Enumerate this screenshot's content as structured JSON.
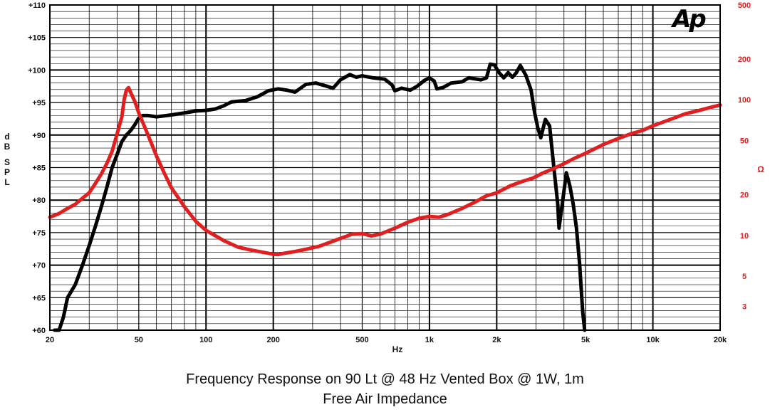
{
  "chart_data": {
    "type": "line",
    "logo": "Ap",
    "title_line1": "Frequency Response on 90 Lt @ 48 Hz Vented Box @ 1W, 1m",
    "title_line2": "Free Air Impedance",
    "xlabel": "Hz",
    "ylabel_left": "dB SPL",
    "ylabel_right": "Ω",
    "x_scale": "log",
    "xlim": [
      20,
      20000
    ],
    "ylim_left": [
      60,
      110
    ],
    "ylim_right": [
      2,
      500
    ],
    "y_right_scale": "log",
    "grid": true,
    "x_ticks": [
      {
        "value": 20,
        "label": "20"
      },
      {
        "value": 50,
        "label": "50"
      },
      {
        "value": 100,
        "label": "100"
      },
      {
        "value": 200,
        "label": "200"
      },
      {
        "value": 500,
        "label": "500"
      },
      {
        "value": 1000,
        "label": "1k"
      },
      {
        "value": 2000,
        "label": "2k"
      },
      {
        "value": 5000,
        "label": "5k"
      },
      {
        "value": 10000,
        "label": "10k"
      },
      {
        "value": 20000,
        "label": "20k"
      }
    ],
    "y_left_ticks": [
      {
        "value": 60,
        "label": "+60"
      },
      {
        "value": 65,
        "label": "+65"
      },
      {
        "value": 70,
        "label": "+70"
      },
      {
        "value": 75,
        "label": "+75"
      },
      {
        "value": 80,
        "label": "+80"
      },
      {
        "value": 85,
        "label": "+85"
      },
      {
        "value": 90,
        "label": "+90"
      },
      {
        "value": 95,
        "label": "+95"
      },
      {
        "value": 100,
        "label": "+100"
      },
      {
        "value": 105,
        "label": "+105"
      },
      {
        "value": 110,
        "label": "+110"
      }
    ],
    "y_right_ticks": [
      {
        "value": 3,
        "label": "3"
      },
      {
        "value": 5,
        "label": "5"
      },
      {
        "value": 10,
        "label": "10"
      },
      {
        "value": 20,
        "label": "20"
      },
      {
        "value": 50,
        "label": "50"
      },
      {
        "value": 100,
        "label": "100"
      },
      {
        "value": 200,
        "label": "200"
      },
      {
        "value": 500,
        "label": "500"
      }
    ],
    "series": [
      {
        "axis": "left",
        "color": "#000000",
        "points": [
          [
            21,
            59
          ],
          [
            22,
            60
          ],
          [
            23,
            62
          ],
          [
            24,
            65
          ],
          [
            26,
            67
          ],
          [
            28,
            70
          ],
          [
            30,
            73
          ],
          [
            32,
            76
          ],
          [
            34,
            79
          ],
          [
            36,
            82
          ],
          [
            38,
            85
          ],
          [
            40,
            87
          ],
          [
            42,
            89
          ],
          [
            44,
            90
          ],
          [
            46,
            90.7
          ],
          [
            48,
            91.6
          ],
          [
            50,
            92.6
          ],
          [
            52,
            93
          ],
          [
            55,
            93
          ],
          [
            60,
            92.8
          ],
          [
            70,
            93.1
          ],
          [
            80,
            93.4
          ],
          [
            90,
            93.7
          ],
          [
            100,
            93.8
          ],
          [
            110,
            94
          ],
          [
            120,
            94.5
          ],
          [
            130,
            95.1
          ],
          [
            150,
            95.3
          ],
          [
            170,
            95.9
          ],
          [
            190,
            96.8
          ],
          [
            210,
            97.1
          ],
          [
            230,
            96.9
          ],
          [
            250,
            96.6
          ],
          [
            280,
            97.8
          ],
          [
            310,
            98
          ],
          [
            340,
            97.6
          ],
          [
            370,
            97.2
          ],
          [
            400,
            98.5
          ],
          [
            440,
            99.3
          ],
          [
            470,
            98.9
          ],
          [
            500,
            99.1
          ],
          [
            560,
            98.8
          ],
          [
            630,
            98.6
          ],
          [
            680,
            97.7
          ],
          [
            700,
            96.8
          ],
          [
            750,
            97.2
          ],
          [
            820,
            96.9
          ],
          [
            880,
            97.5
          ],
          [
            950,
            98.4
          ],
          [
            1000,
            98.8
          ],
          [
            1050,
            98.3
          ],
          [
            1080,
            97.1
          ],
          [
            1150,
            97.3
          ],
          [
            1250,
            98
          ],
          [
            1400,
            98.2
          ],
          [
            1500,
            98.8
          ],
          [
            1700,
            98.5
          ],
          [
            1800,
            98.8
          ],
          [
            1870,
            100.9
          ],
          [
            1950,
            100.8
          ],
          [
            2050,
            99.6
          ],
          [
            2150,
            98.8
          ],
          [
            2250,
            99.6
          ],
          [
            2350,
            98.9
          ],
          [
            2450,
            99.6
          ],
          [
            2550,
            100.7
          ],
          [
            2700,
            99.2
          ],
          [
            2850,
            96.9
          ],
          [
            2950,
            93.6
          ],
          [
            3050,
            91.2
          ],
          [
            3150,
            89.6
          ],
          [
            3300,
            92.4
          ],
          [
            3450,
            91.4
          ],
          [
            3600,
            85.2
          ],
          [
            3750,
            79.4
          ],
          [
            3800,
            75.7
          ],
          [
            3950,
            79.9
          ],
          [
            4100,
            84.2
          ],
          [
            4250,
            82.2
          ],
          [
            4400,
            79.4
          ],
          [
            4550,
            75.7
          ],
          [
            4700,
            70.2
          ],
          [
            4850,
            62.9
          ],
          [
            4950,
            60
          ]
        ]
      },
      {
        "axis": "right",
        "color": "#e02020",
        "points": [
          [
            20,
            13.6
          ],
          [
            22,
            14.5
          ],
          [
            24,
            15.8
          ],
          [
            26,
            17
          ],
          [
            28,
            18.8
          ],
          [
            30,
            20.6
          ],
          [
            32,
            24.2
          ],
          [
            34,
            28.4
          ],
          [
            36,
            34
          ],
          [
            38,
            41.7
          ],
          [
            40,
            56
          ],
          [
            42,
            75
          ],
          [
            43,
            100
          ],
          [
            44,
            118
          ],
          [
            45,
            123
          ],
          [
            46,
            113
          ],
          [
            48,
            97
          ],
          [
            50,
            80
          ],
          [
            55,
            55
          ],
          [
            60,
            38.5
          ],
          [
            65,
            28.8
          ],
          [
            70,
            22.4
          ],
          [
            80,
            16.3
          ],
          [
            90,
            12.7
          ],
          [
            100,
            10.9
          ],
          [
            120,
            9.15
          ],
          [
            140,
            8.16
          ],
          [
            160,
            7.78
          ],
          [
            180,
            7.5
          ],
          [
            200,
            7.27
          ],
          [
            210,
            7.22
          ],
          [
            220,
            7.35
          ],
          [
            250,
            7.6
          ],
          [
            280,
            7.9
          ],
          [
            320,
            8.3
          ],
          [
            360,
            8.9
          ],
          [
            400,
            9.5
          ],
          [
            450,
            10.2
          ],
          [
            500,
            10.3
          ],
          [
            550,
            9.9
          ],
          [
            600,
            10.2
          ],
          [
            700,
            11.3
          ],
          [
            800,
            12.5
          ],
          [
            900,
            13.4
          ],
          [
            1000,
            13.8
          ],
          [
            1100,
            13.6
          ],
          [
            1200,
            14.2
          ],
          [
            1400,
            15.8
          ],
          [
            1600,
            17.6
          ],
          [
            1800,
            19.6
          ],
          [
            2000,
            20.6
          ],
          [
            2300,
            23.2
          ],
          [
            2600,
            25
          ],
          [
            2900,
            26.4
          ],
          [
            3200,
            28.7
          ],
          [
            3600,
            31.1
          ],
          [
            4000,
            33.8
          ],
          [
            4500,
            37.3
          ],
          [
            5000,
            40.3
          ],
          [
            6000,
            46.8
          ],
          [
            7000,
            51.8
          ],
          [
            8000,
            56.2
          ],
          [
            9000,
            59.5
          ],
          [
            10000,
            64.3
          ],
          [
            12000,
            71.7
          ],
          [
            14000,
            78.9
          ],
          [
            16000,
            83.2
          ],
          [
            18000,
            87.6
          ],
          [
            20000,
            91.5
          ]
        ]
      }
    ]
  }
}
